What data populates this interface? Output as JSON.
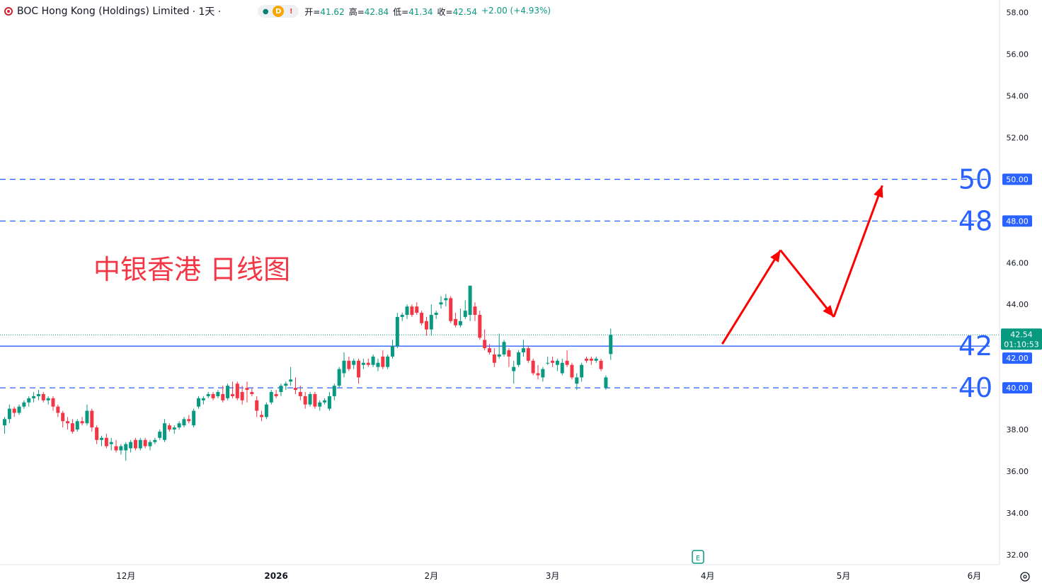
{
  "header": {
    "symbol": "BOC Hong Kong (Holdings) Limited",
    "interval": "· 1天 ·",
    "pill_d": "D",
    "pill_ex": "!",
    "open_label": "开=",
    "open": "41.62",
    "high_label": "高=",
    "high": "42.84",
    "low_label": "低=",
    "low": "41.34",
    "close_label": "收=",
    "close": "42.54",
    "change": "+2.00 (+4.93%)"
  },
  "colors": {
    "up": "#089981",
    "down": "#f23645",
    "level_line": "#2962ff",
    "arrow": "#ff0000",
    "annotation_text": "#f23645",
    "level_label": "#2962ff",
    "price_tag": "#2962ff",
    "last_tag": "#089981"
  },
  "chart_data": {
    "type": "candlestick",
    "title": "中银香港 日线图",
    "y_axis": {
      "min": 30.4,
      "max": 58.6,
      "ticks": [
        "58.00",
        "56.00",
        "54.00",
        "52.00",
        "50.00",
        "48.00",
        "46.00",
        "44.00",
        "42.00",
        "40.00",
        "38.00",
        "36.00",
        "34.00",
        "32.00"
      ]
    },
    "x_axis": {
      "ticks": [
        {
          "label": "12月",
          "index": 25
        },
        {
          "label": "2026",
          "index": 56
        },
        {
          "label": "2月",
          "index": 88
        },
        {
          "label": "3月",
          "index": 113
        },
        {
          "label": "4月",
          "index": 145
        },
        {
          "label": "5月",
          "index": 173
        },
        {
          "label": "6月",
          "index": 200
        }
      ],
      "bold": [
        "2026"
      ]
    },
    "candles": [
      [
        38.2,
        38.6,
        37.8,
        38.5
      ],
      [
        38.5,
        39.2,
        38.3,
        39.0
      ],
      [
        39.0,
        39.1,
        38.6,
        38.8
      ],
      [
        38.8,
        39.2,
        38.7,
        39.1
      ],
      [
        39.1,
        39.4,
        39.0,
        39.3
      ],
      [
        39.3,
        39.6,
        39.1,
        39.5
      ],
      [
        39.5,
        39.8,
        39.3,
        39.6
      ],
      [
        39.6,
        39.9,
        39.4,
        39.7
      ],
      [
        39.7,
        39.8,
        39.3,
        39.4
      ],
      [
        39.4,
        39.6,
        39.2,
        39.5
      ],
      [
        39.5,
        39.6,
        38.9,
        39.1
      ],
      [
        39.1,
        39.2,
        38.6,
        38.8
      ],
      [
        38.8,
        38.9,
        38.1,
        38.4
      ],
      [
        38.4,
        38.6,
        38.0,
        38.3
      ],
      [
        38.3,
        38.5,
        37.8,
        37.9
      ],
      [
        38.0,
        38.5,
        37.9,
        38.4
      ],
      [
        38.4,
        38.6,
        38.2,
        38.3
      ],
      [
        38.3,
        39.2,
        38.2,
        38.9
      ],
      [
        38.9,
        39.0,
        37.9,
        38.1
      ],
      [
        38.1,
        38.2,
        37.3,
        37.5
      ],
      [
        37.5,
        37.7,
        37.2,
        37.6
      ],
      [
        37.6,
        37.8,
        37.1,
        37.2
      ],
      [
        37.3,
        37.6,
        37.0,
        37.4
      ],
      [
        37.2,
        37.5,
        36.9,
        37.0
      ],
      [
        37.0,
        37.3,
        36.8,
        37.2
      ],
      [
        37.0,
        37.4,
        36.5,
        37.3
      ],
      [
        37.1,
        37.5,
        36.9,
        37.4
      ],
      [
        37.5,
        37.6,
        37.0,
        37.1
      ],
      [
        37.1,
        37.6,
        37.0,
        37.5
      ],
      [
        37.5,
        37.6,
        37.1,
        37.2
      ],
      [
        37.2,
        37.5,
        37.0,
        37.4
      ],
      [
        37.4,
        37.6,
        37.3,
        37.5
      ],
      [
        37.6,
        38.0,
        37.5,
        37.9
      ],
      [
        37.5,
        38.5,
        37.4,
        38.3
      ],
      [
        38.2,
        38.3,
        37.9,
        38.0
      ],
      [
        38.0,
        38.2,
        37.8,
        38.1
      ],
      [
        38.1,
        38.4,
        38.0,
        38.3
      ],
      [
        38.2,
        38.6,
        38.1,
        38.5
      ],
      [
        38.5,
        38.7,
        38.3,
        38.4
      ],
      [
        38.2,
        39.0,
        38.1,
        38.9
      ],
      [
        39.1,
        39.6,
        39.0,
        39.5
      ],
      [
        39.4,
        39.6,
        39.2,
        39.5
      ],
      [
        39.6,
        39.8,
        39.5,
        39.7
      ],
      [
        39.7,
        39.8,
        39.4,
        39.5
      ],
      [
        39.6,
        39.9,
        39.5,
        39.8
      ],
      [
        39.7,
        40.1,
        39.3,
        39.4
      ],
      [
        39.5,
        40.2,
        39.4,
        40.1
      ],
      [
        39.7,
        40.3,
        39.5,
        39.6
      ],
      [
        40.2,
        40.3,
        39.4,
        39.5
      ],
      [
        39.8,
        40.1,
        39.2,
        39.4
      ],
      [
        40.0,
        40.3,
        39.3,
        39.9
      ],
      [
        39.8,
        40.0,
        39.6,
        39.7
      ],
      [
        39.4,
        39.6,
        38.6,
        38.9
      ],
      [
        38.7,
        38.9,
        38.4,
        38.6
      ],
      [
        38.6,
        39.3,
        38.5,
        39.2
      ],
      [
        39.3,
        39.9,
        39.2,
        39.8
      ],
      [
        39.7,
        39.9,
        39.5,
        39.6
      ],
      [
        39.8,
        40.2,
        39.6,
        40.1
      ],
      [
        40.1,
        40.3,
        39.9,
        40.2
      ],
      [
        40.3,
        41.0,
        40.1,
        40.4
      ],
      [
        40.0,
        40.5,
        39.7,
        39.9
      ],
      [
        39.8,
        40.1,
        39.4,
        39.6
      ],
      [
        39.6,
        39.8,
        39.0,
        39.2
      ],
      [
        39.2,
        39.8,
        39.1,
        39.7
      ],
      [
        39.7,
        39.8,
        39.0,
        39.1
      ],
      [
        39.1,
        39.4,
        38.9,
        39.3
      ],
      [
        39.3,
        39.5,
        39.2,
        39.4
      ],
      [
        39.0,
        39.8,
        38.9,
        39.6
      ],
      [
        39.6,
        40.2,
        39.4,
        40.1
      ],
      [
        40.1,
        41.0,
        40.0,
        40.9
      ],
      [
        40.7,
        41.7,
        40.5,
        41.3
      ],
      [
        41.3,
        41.5,
        40.8,
        40.9
      ],
      [
        41.1,
        41.4,
        40.9,
        41.3
      ],
      [
        41.3,
        41.4,
        40.2,
        40.5
      ],
      [
        41.1,
        41.4,
        40.9,
        41.2
      ],
      [
        41.2,
        41.4,
        41.0,
        41.1
      ],
      [
        41.1,
        41.6,
        41.0,
        41.5
      ],
      [
        41.0,
        41.4,
        40.8,
        41.2
      ],
      [
        41.5,
        41.8,
        40.9,
        41.0
      ],
      [
        41.0,
        41.6,
        40.9,
        41.5
      ],
      [
        41.5,
        42.3,
        41.4,
        42.0
      ],
      [
        42.0,
        43.6,
        41.9,
        43.4
      ],
      [
        43.4,
        43.6,
        43.2,
        43.5
      ],
      [
        43.5,
        44.0,
        43.3,
        43.9
      ],
      [
        43.9,
        44.0,
        43.4,
        43.5
      ],
      [
        43.9,
        44.1,
        43.5,
        43.6
      ],
      [
        43.6,
        43.7,
        43.0,
        43.1
      ],
      [
        43.2,
        43.4,
        42.5,
        42.8
      ],
      [
        42.8,
        44.0,
        42.5,
        43.5
      ],
      [
        43.5,
        43.7,
        43.3,
        43.6
      ],
      [
        44.0,
        44.4,
        43.8,
        44.1
      ],
      [
        44.2,
        44.5,
        43.9,
        44.3
      ],
      [
        44.3,
        44.4,
        43.1,
        43.2
      ],
      [
        43.3,
        43.6,
        42.9,
        43.0
      ],
      [
        43.0,
        43.8,
        42.9,
        43.2
      ],
      [
        43.4,
        44.2,
        43.3,
        43.7
      ],
      [
        43.5,
        44.9,
        43.2,
        44.9
      ],
      [
        43.9,
        44.1,
        43.2,
        43.5
      ],
      [
        43.5,
        43.7,
        42.3,
        42.4
      ],
      [
        42.3,
        42.8,
        41.8,
        41.9
      ],
      [
        41.9,
        42.1,
        41.6,
        41.7
      ],
      [
        41.6,
        41.9,
        41.0,
        41.2
      ],
      [
        41.5,
        42.6,
        41.4,
        41.6
      ],
      [
        41.6,
        42.3,
        41.5,
        42.2
      ],
      [
        41.8,
        41.9,
        41.0,
        41.5
      ],
      [
        40.8,
        41.3,
        40.2,
        41.0
      ],
      [
        41.1,
        41.8,
        41.0,
        41.7
      ],
      [
        41.7,
        42.3,
        41.5,
        41.9
      ],
      [
        41.9,
        42.0,
        41.2,
        41.3
      ],
      [
        41.3,
        41.4,
        40.6,
        40.7
      ],
      [
        40.7,
        41.1,
        40.4,
        40.6
      ],
      [
        40.5,
        41.0,
        40.3,
        40.9
      ],
      [
        41.2,
        41.5,
        41.1,
        41.2
      ],
      [
        41.3,
        41.5,
        41.0,
        41.2
      ],
      [
        41.1,
        41.4,
        40.8,
        41.3
      ],
      [
        40.7,
        41.4,
        40.6,
        41.2
      ],
      [
        41.3,
        41.8,
        41.0,
        41.1
      ],
      [
        41.1,
        41.2,
        40.4,
        40.5
      ],
      [
        40.2,
        40.7,
        39.9,
        40.5
      ],
      [
        40.5,
        41.2,
        40.3,
        41.1
      ],
      [
        41.4,
        41.5,
        41.2,
        41.3
      ],
      [
        41.4,
        41.5,
        41.1,
        41.3
      ],
      [
        41.3,
        41.5,
        41.2,
        41.4
      ],
      [
        41.3,
        41.4,
        40.8,
        40.9
      ],
      [
        40.0,
        40.6,
        39.9,
        40.5
      ],
      [
        41.62,
        42.84,
        41.34,
        42.54
      ]
    ],
    "levels": [
      {
        "value": 50.0,
        "label": "50",
        "tag": "50.00",
        "style": "dashed"
      },
      {
        "value": 48.0,
        "label": "48",
        "tag": "48.00",
        "style": "dashed"
      },
      {
        "value": 42.0,
        "label": "42",
        "tag": "42.00",
        "style": "solid"
      },
      {
        "value": 40.0,
        "label": "40",
        "tag": "40.00",
        "style": "dashed"
      }
    ],
    "last_price": {
      "value": 42.54,
      "tag": "42.54",
      "countdown": "01:10:53"
    },
    "projection": [
      {
        "index": 148,
        "value": 42.1
      },
      {
        "index": 160,
        "value": 46.6
      },
      {
        "index": 171,
        "value": 43.4
      },
      {
        "index": 181,
        "value": 49.7
      }
    ],
    "event_marker": {
      "label": "E",
      "index": 143
    }
  }
}
